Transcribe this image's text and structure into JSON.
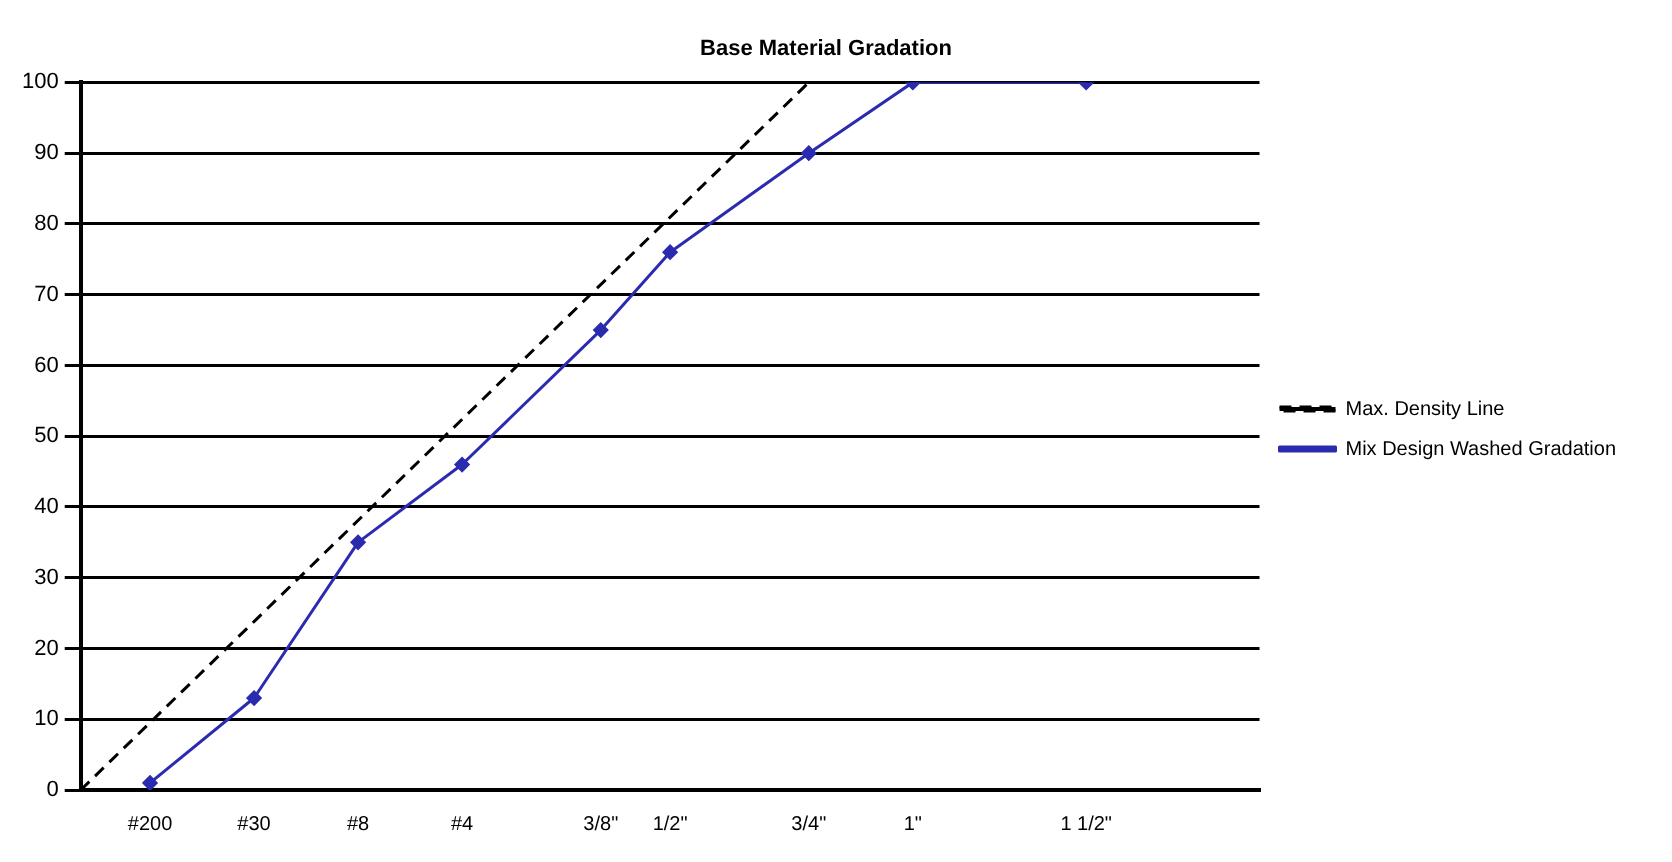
{
  "chart_data": {
    "type": "line",
    "title": "Base Material Gradation",
    "categories": [
      null,
      null,
      "#200",
      null,
      null,
      "#30",
      null,
      null,
      "#8",
      null,
      null,
      "#4",
      null,
      null,
      null,
      "3/8\"",
      null,
      "1/2\"",
      null,
      null,
      null,
      "3/4\"",
      null,
      null,
      "1\"",
      null,
      null,
      null,
      null,
      "1 1/2\"",
      null,
      null,
      null,
      null,
      null
    ],
    "ylim": [
      0,
      100
    ],
    "yticks": [
      0,
      10,
      20,
      30,
      40,
      50,
      60,
      70,
      80,
      90,
      100
    ],
    "grid": "y",
    "legend": "right",
    "series": [
      {
        "name": "Max. Density Line",
        "color": "#000000",
        "line_style": "dashed",
        "marker": "none",
        "values": [
          0,
          null,
          null,
          null,
          null,
          null,
          null,
          null,
          null,
          null,
          null,
          null,
          null,
          null,
          null,
          null,
          null,
          null,
          null,
          null,
          null,
          100,
          null,
          null,
          null,
          null,
          null,
          null,
          null,
          null,
          null,
          null,
          null,
          null,
          null
        ]
      },
      {
        "name": "Mix Design Washed Gradation",
        "color": "#2b2bb0",
        "line_style": "solid",
        "marker": "diamond",
        "values": [
          null,
          null,
          1,
          null,
          null,
          13,
          null,
          null,
          35,
          null,
          null,
          46,
          null,
          null,
          null,
          65,
          null,
          76,
          null,
          null,
          null,
          90,
          null,
          null,
          100,
          null,
          null,
          null,
          null,
          100,
          null,
          null,
          null,
          null,
          null
        ]
      }
    ]
  }
}
